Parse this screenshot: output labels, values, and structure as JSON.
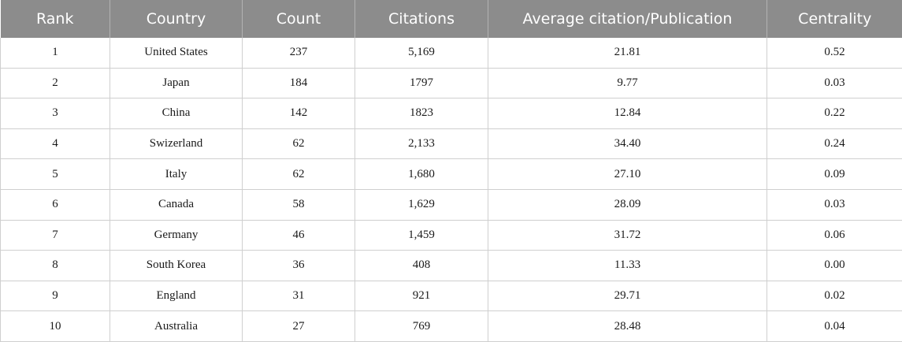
{
  "table": {
    "headers": [
      "Rank",
      "Country",
      "Count",
      "Citations",
      "Average citation/Publication",
      "Centrality"
    ],
    "rows": [
      [
        "1",
        "United States",
        "237",
        "5,169",
        "21.81",
        "0.52"
      ],
      [
        "2",
        "Japan",
        "184",
        "1797",
        "9.77",
        "0.03"
      ],
      [
        "3",
        "China",
        "142",
        "1823",
        "12.84",
        "0.22"
      ],
      [
        "4",
        "Swizerland",
        "62",
        "2,133",
        "34.40",
        "0.24"
      ],
      [
        "5",
        "Italy",
        "62",
        "1,680",
        "27.10",
        "0.09"
      ],
      [
        "6",
        "Canada",
        "58",
        "1,629",
        "28.09",
        "0.03"
      ],
      [
        "7",
        "Germany",
        "46",
        "1,459",
        "31.72",
        "0.06"
      ],
      [
        "8",
        "South Korea",
        "36",
        "408",
        "11.33",
        "0.00"
      ],
      [
        "9",
        "England",
        "31",
        "921",
        "29.71",
        "0.02"
      ],
      [
        "10",
        "Australia",
        "27",
        "769",
        "28.48",
        "0.04"
      ]
    ]
  },
  "colors": {
    "header_background": "#8c8c8c",
    "header_text": "#ffffff",
    "grid_line": "#cfcfcf"
  }
}
